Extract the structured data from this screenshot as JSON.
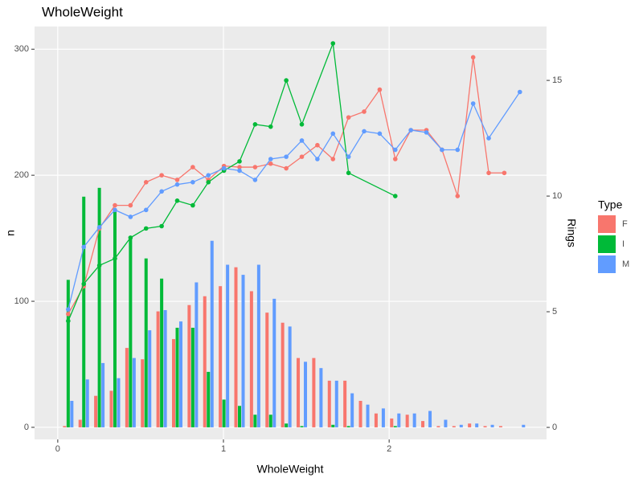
{
  "chart_data": {
    "type": "bar-line",
    "title": "WholeWeight",
    "x_label": "WholeWeight",
    "y_label": "n",
    "y2_label": "Rings",
    "legend_title": "Type",
    "legend": "right",
    "grid": true,
    "xlim": [
      -0.14,
      2.95
    ],
    "xticks": [
      0,
      1,
      2
    ],
    "ylim": [
      -9.6,
      318
    ],
    "yticks": [
      0,
      100,
      200,
      300
    ],
    "y2lim": [
      -0.52,
      17.33
    ],
    "y2ticks": [
      0,
      5,
      10,
      15
    ],
    "series": [
      {
        "name": "F",
        "color": "#f8766d",
        "x": [
          0.063,
          0.157,
          0.251,
          0.345,
          0.439,
          0.533,
          0.627,
          0.721,
          0.815,
          0.909,
          1.003,
          1.097,
          1.191,
          1.285,
          1.379,
          1.473,
          1.567,
          1.661,
          1.755,
          1.849,
          1.943,
          2.037,
          2.131,
          2.225,
          2.319,
          2.413,
          2.507,
          2.601,
          2.695
        ],
        "values": [
          1,
          6,
          25,
          29,
          63,
          54,
          92,
          70,
          97,
          104,
          112,
          127,
          108,
          91,
          83,
          55,
          55,
          37,
          37,
          21,
          11,
          7,
          10,
          5,
          1,
          1,
          3,
          1,
          1
        ],
        "rings": [
          4.9,
          6.1,
          8.6,
          9.6,
          9.6,
          10.6,
          10.9,
          10.7,
          11.25,
          10.7,
          11.3,
          11.25,
          11.25,
          11.4,
          11.2,
          11.7,
          12.2,
          11.6,
          13.4,
          13.65,
          14.6,
          11.6,
          12.85,
          12.85,
          12.0,
          10.0,
          16.0,
          11.0,
          11.0
        ]
      },
      {
        "name": "I",
        "color": "#00ba38",
        "x": [
          0.063,
          0.157,
          0.251,
          0.345,
          0.439,
          0.533,
          0.627,
          0.721,
          0.815,
          0.909,
          1.003,
          1.097,
          1.191,
          1.285,
          1.379,
          1.473,
          1.661,
          1.755,
          2.037
        ],
        "values": [
          117,
          183,
          190,
          173,
          150,
          134,
          118,
          79,
          79,
          44,
          22,
          17,
          10,
          10,
          3,
          1,
          2,
          1,
          1
        ],
        "rings": [
          4.6,
          6.2,
          7.0,
          7.3,
          8.2,
          8.6,
          8.7,
          9.8,
          9.6,
          10.6,
          11.1,
          11.5,
          13.1,
          13.0,
          15.0,
          13.1,
          16.6,
          11.0,
          10.0
        ]
      },
      {
        "name": "M",
        "color": "#619cff",
        "x": [
          0.063,
          0.157,
          0.251,
          0.345,
          0.439,
          0.533,
          0.627,
          0.721,
          0.815,
          0.909,
          1.003,
          1.097,
          1.191,
          1.285,
          1.379,
          1.473,
          1.567,
          1.661,
          1.755,
          1.849,
          1.943,
          2.037,
          2.131,
          2.225,
          2.319,
          2.413,
          2.507,
          2.601,
          2.789
        ],
        "values": [
          21,
          38,
          51,
          39,
          55,
          77,
          93,
          84,
          115,
          148,
          129,
          121,
          129,
          102,
          80,
          52,
          47,
          37,
          27,
          18,
          15,
          11,
          11,
          13,
          6,
          2,
          3,
          2,
          2
        ],
        "rings": [
          5.1,
          7.8,
          8.65,
          9.4,
          9.1,
          9.4,
          10.2,
          10.5,
          10.6,
          10.9,
          11.2,
          11.1,
          10.7,
          11.6,
          11.7,
          12.4,
          11.6,
          12.7,
          11.7,
          12.8,
          12.7,
          12.0,
          12.85,
          12.75,
          12.0,
          12.0,
          14.0,
          12.5,
          14.5
        ]
      }
    ]
  }
}
